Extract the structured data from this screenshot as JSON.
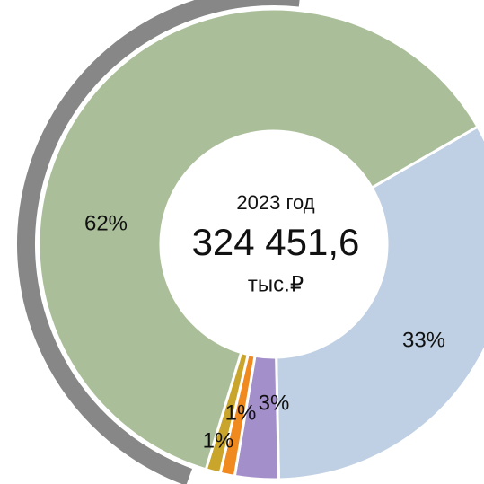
{
  "chart_data": {
    "type": "pie",
    "year_label": "2023 год",
    "total": "324 451,6",
    "unit": "тыс.₽",
    "start_angle": 60,
    "series": [
      {
        "value": 33,
        "value_label": "33%",
        "color": "#bfd0e4"
      },
      {
        "value": 3,
        "value_label": "3%",
        "color": "#a38fca"
      },
      {
        "value": 1,
        "value_label": "1%",
        "color": "#f08a1e"
      },
      {
        "value": 1,
        "value_label": "1%",
        "color": "#c9a52c"
      },
      {
        "value": 62,
        "value_label": "62%",
        "color": "#aabf99"
      }
    ]
  }
}
